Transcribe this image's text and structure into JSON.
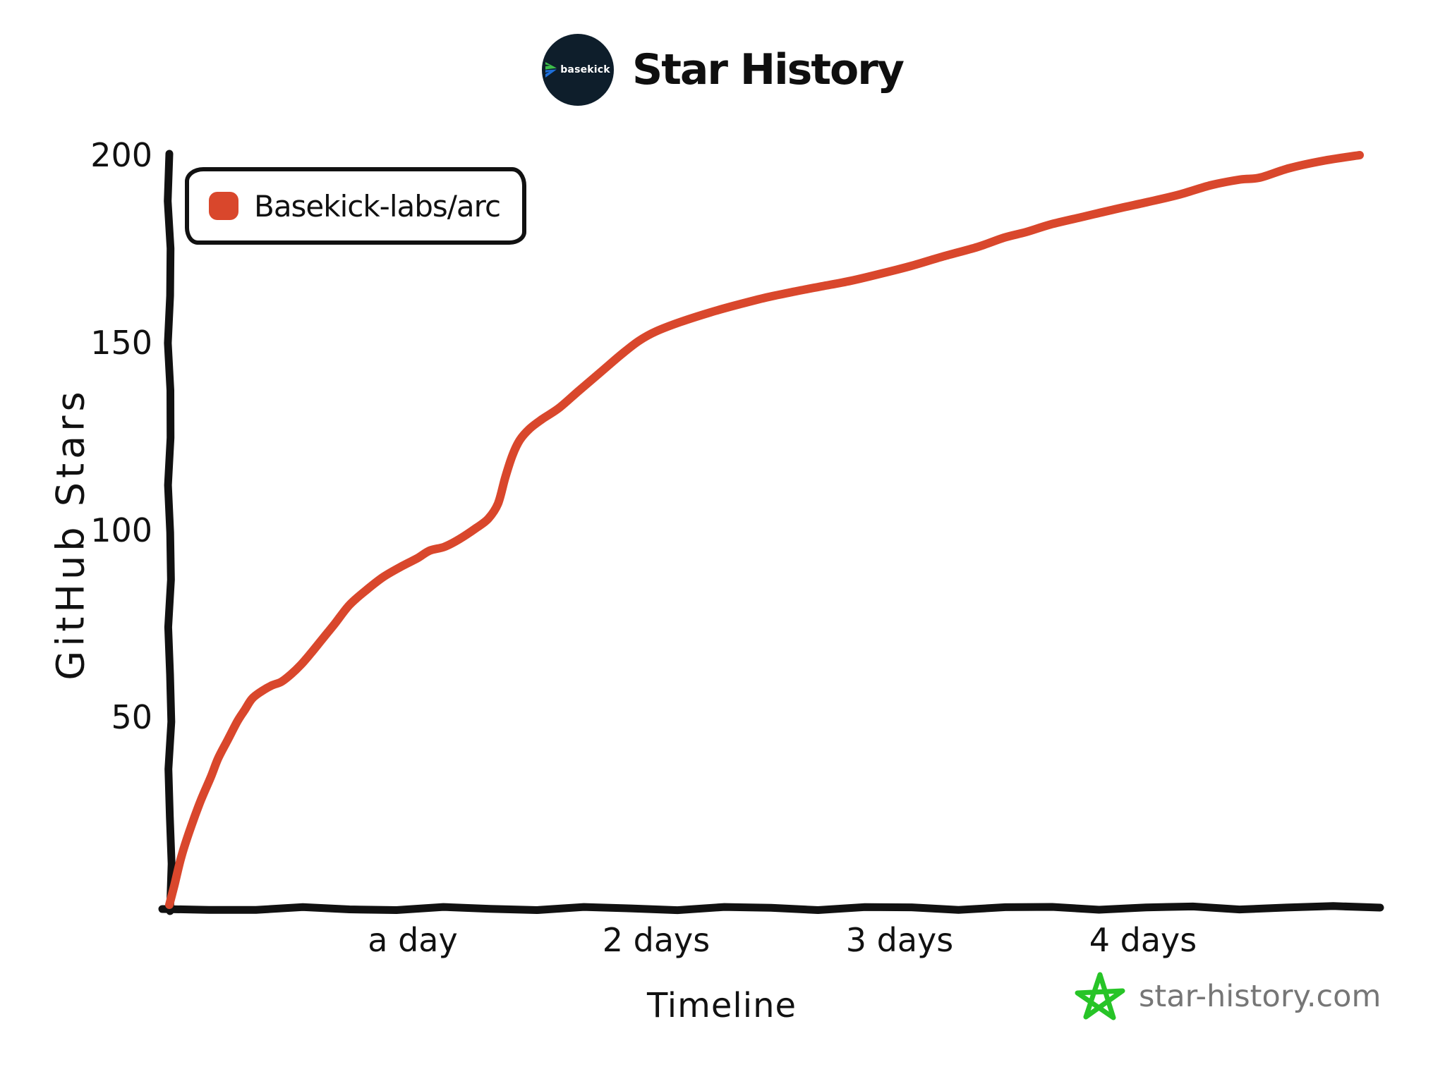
{
  "header": {
    "title": "Star History",
    "logo_text": "basekick"
  },
  "legend": {
    "label": "Basekick-labs/arc"
  },
  "y_axis": {
    "title": "GitHub Stars"
  },
  "x_axis": {
    "title": "Timeline"
  },
  "watermark": {
    "text": "star-history.com"
  },
  "colors": {
    "line": "#D9472C",
    "swatch": "#D9472C",
    "axis": "#111111",
    "text": "#111111",
    "watermark_text": "#767676",
    "logo_bg": "#0E1E2B",
    "logo_chevron_green": "#3DBE4B",
    "logo_chevron_blue": "#1E6FD9",
    "star_green": "#27C427"
  },
  "chart_data": {
    "type": "line",
    "title": "Star History",
    "xlabel": "Timeline",
    "ylabel": "GitHub Stars",
    "xlim": [
      0,
      4.97
    ],
    "ylim": [
      0,
      200
    ],
    "x_unit": "days",
    "grid": false,
    "legend_position": "top-left",
    "y_ticks": [
      50,
      100,
      150,
      200
    ],
    "x_ticks": [
      {
        "value": 1,
        "label": "a day"
      },
      {
        "value": 2,
        "label": "2 days"
      },
      {
        "value": 3,
        "label": "3 days"
      },
      {
        "value": 4,
        "label": "4 days"
      }
    ],
    "series": [
      {
        "name": "Basekick-labs/arc",
        "points": [
          [
            0,
            0
          ],
          [
            0.02,
            5
          ],
          [
            0.05,
            13
          ],
          [
            0.09,
            21
          ],
          [
            0.13,
            28
          ],
          [
            0.17,
            34
          ],
          [
            0.2,
            39
          ],
          [
            0.24,
            44
          ],
          [
            0.28,
            49
          ],
          [
            0.31,
            52
          ],
          [
            0.34,
            55
          ],
          [
            0.38,
            57
          ],
          [
            0.42,
            58.5
          ],
          [
            0.46,
            59.5
          ],
          [
            0.5,
            61.5
          ],
          [
            0.54,
            64
          ],
          [
            0.58,
            67
          ],
          [
            0.63,
            71
          ],
          [
            0.68,
            75
          ],
          [
            0.74,
            80
          ],
          [
            0.81,
            84
          ],
          [
            0.88,
            87.5
          ],
          [
            0.96,
            90.5
          ],
          [
            1.02,
            92.5
          ],
          [
            1.07,
            94.5
          ],
          [
            1.13,
            95.5
          ],
          [
            1.19,
            97.5
          ],
          [
            1.26,
            100.5
          ],
          [
            1.31,
            103
          ],
          [
            1.35,
            107
          ],
          [
            1.38,
            114
          ],
          [
            1.41,
            120
          ],
          [
            1.44,
            124
          ],
          [
            1.48,
            127
          ],
          [
            1.53,
            129.5
          ],
          [
            1.6,
            132.5
          ],
          [
            1.68,
            137
          ],
          [
            1.77,
            142
          ],
          [
            1.86,
            147
          ],
          [
            1.93,
            150.5
          ],
          [
            2.0,
            153
          ],
          [
            2.1,
            155.5
          ],
          [
            2.22,
            158
          ],
          [
            2.33,
            160
          ],
          [
            2.45,
            162
          ],
          [
            2.56,
            163.5
          ],
          [
            2.68,
            165
          ],
          [
            2.8,
            166.5
          ],
          [
            2.93,
            168.5
          ],
          [
            3.05,
            170.5
          ],
          [
            3.18,
            173
          ],
          [
            3.32,
            175.5
          ],
          [
            3.43,
            178
          ],
          [
            3.52,
            179.5
          ],
          [
            3.62,
            181.5
          ],
          [
            3.75,
            183.5
          ],
          [
            3.88,
            185.5
          ],
          [
            4.02,
            187.5
          ],
          [
            4.15,
            189.5
          ],
          [
            4.28,
            192
          ],
          [
            4.4,
            193.5
          ],
          [
            4.48,
            194
          ],
          [
            4.6,
            196.5
          ],
          [
            4.74,
            198.5
          ],
          [
            4.89,
            200
          ]
        ]
      }
    ]
  }
}
